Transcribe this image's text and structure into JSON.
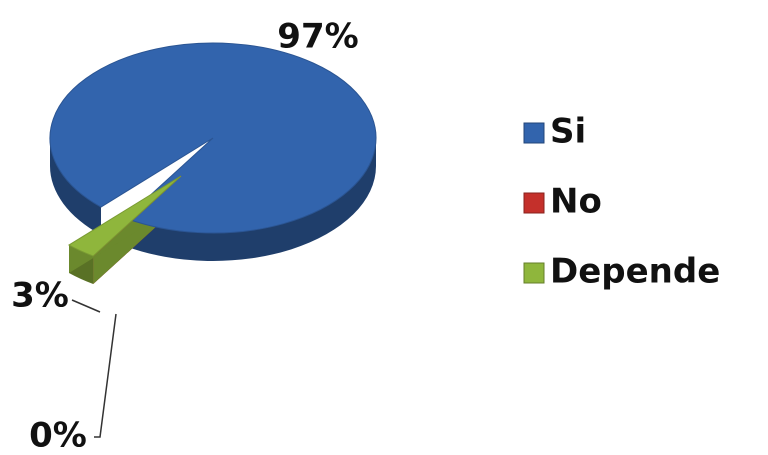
{
  "chart_data": {
    "type": "pie3d",
    "categories": [
      "Si",
      "No",
      "Depende"
    ],
    "values": [
      97,
      0,
      3
    ],
    "value_labels": [
      "97%",
      "0%",
      "3%"
    ],
    "series": [
      {
        "name": "Si",
        "color": "#3264ad"
      },
      {
        "name": "No",
        "color": "#c4302b"
      },
      {
        "name": "Depende",
        "color": "#8fb63c"
      }
    ],
    "legend": "right"
  }
}
